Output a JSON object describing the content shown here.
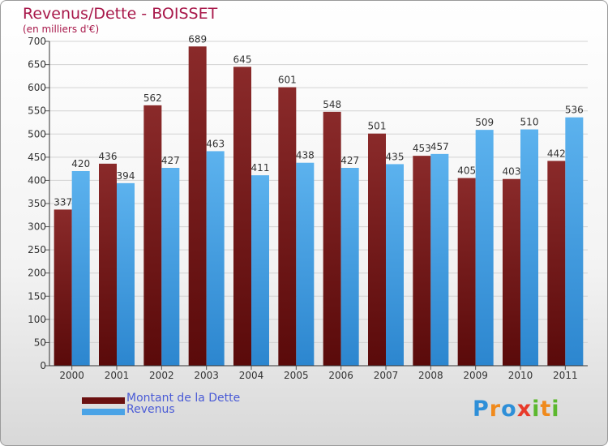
{
  "chart_data": {
    "type": "bar",
    "title": "Revenus/Dette - BOISSET",
    "subtitle": "(en milliers d'€)",
    "categories": [
      "2000",
      "2001",
      "2002",
      "2003",
      "2004",
      "2005",
      "2006",
      "2007",
      "2008",
      "2009",
      "2010",
      "2011"
    ],
    "series": [
      {
        "name": "Montant de la Dette",
        "color": "#7a1a1a",
        "values": [
          337,
          436,
          562,
          689,
          645,
          601,
          548,
          501,
          453,
          405,
          403,
          442
        ]
      },
      {
        "name": "Revenus",
        "color": "#4aa3e6",
        "values": [
          420,
          394,
          427,
          463,
          411,
          438,
          427,
          435,
          457,
          509,
          510,
          536
        ]
      }
    ],
    "ylim": [
      0,
      700
    ],
    "yticks": [
      0,
      50,
      100,
      150,
      200,
      250,
      300,
      350,
      400,
      450,
      500,
      550,
      600,
      650,
      700
    ],
    "grid": true,
    "legend_position": "bottom-left"
  },
  "logo": {
    "text": "Proxiti",
    "letters": [
      {
        "char": "P",
        "color": "#2e8fd8"
      },
      {
        "char": "r",
        "color": "#f08a1c"
      },
      {
        "char": "o",
        "color": "#2e8fd8"
      },
      {
        "char": "x",
        "color": "#e83a2a"
      },
      {
        "char": "i",
        "color": "#5cb82e"
      },
      {
        "char": "t",
        "color": "#f08a1c"
      },
      {
        "char": "i",
        "color": "#5cb82e"
      }
    ]
  }
}
